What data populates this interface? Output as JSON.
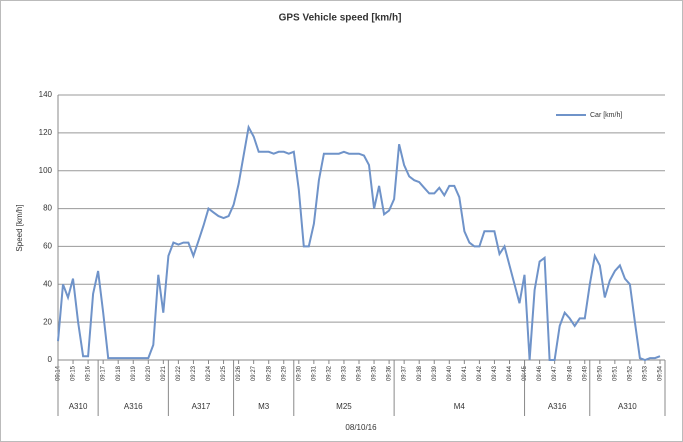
{
  "chart_data": {
    "type": "line",
    "title": "GPS Vehicle speed [km/h]",
    "y_label": "Speed [km/h]",
    "x_label": "08/10/16",
    "groups": [
      "A310",
      "A316",
      "A317",
      "M3",
      "M25",
      "M4",
      "A316",
      "A310"
    ],
    "categories": [
      "09:14",
      null,
      null,
      "09:15",
      null,
      null,
      "09:16",
      null,
      null,
      "09:17",
      null,
      null,
      "09:18",
      null,
      null,
      "09:19",
      null,
      null,
      "09:20",
      null,
      null,
      "09:21",
      null,
      null,
      "09:22",
      null,
      null,
      "09:23",
      null,
      null,
      "09:24",
      null,
      null,
      "09:25",
      null,
      null,
      "09:26",
      null,
      null,
      "09:27",
      null,
      null,
      "09:28",
      null,
      null,
      "09:29",
      null,
      null,
      "09:30",
      null,
      null,
      "09:31",
      null,
      null,
      "09:32",
      null,
      null,
      "09:33",
      null,
      null,
      "09:34",
      null,
      null,
      "09:35",
      null,
      null,
      "09:36",
      null,
      null,
      "09:37",
      null,
      null,
      "09:38",
      null,
      null,
      "09:39",
      null,
      null,
      "09:40",
      null,
      null,
      "09:41",
      null,
      null,
      "09:42",
      null,
      null,
      "09:43",
      null,
      null,
      "09:44",
      null,
      null,
      "09:45",
      null,
      null,
      "09:46",
      null,
      null,
      "09:47",
      null,
      null,
      "09:48",
      null,
      null,
      "09:49",
      null,
      null,
      "09:50",
      null,
      null,
      "09:51",
      null,
      null,
      "09:52",
      null,
      null,
      "09:53",
      null,
      null,
      "09:54"
    ],
    "series": [
      {
        "name": "Car [km/h]",
        "color": "#6f93c9",
        "values": [
          10,
          40,
          33,
          43,
          20,
          2,
          2,
          35,
          47,
          25,
          1,
          1,
          1,
          1,
          1,
          1,
          1,
          1,
          1,
          8,
          45,
          25,
          55,
          62,
          61,
          62,
          62,
          55,
          63,
          71,
          80,
          78,
          76,
          75,
          76,
          82,
          93,
          108,
          123,
          118,
          110,
          110,
          110,
          109,
          110,
          110,
          109,
          110,
          90,
          60,
          60,
          72,
          95,
          109,
          109,
          109,
          109,
          110,
          109,
          109,
          109,
          108,
          103,
          80,
          92,
          77,
          79,
          85,
          114,
          103,
          97,
          95,
          94,
          91,
          88,
          88,
          91,
          87,
          92,
          92,
          86,
          68,
          62,
          60,
          60,
          68,
          68,
          68,
          56,
          60,
          50,
          40,
          30,
          45,
          0,
          37,
          52,
          54,
          0,
          0,
          18,
          25,
          22,
          18,
          22,
          22,
          40,
          55,
          50,
          33,
          42,
          47,
          50,
          43,
          40,
          20,
          1,
          0,
          1,
          1,
          2
        ]
      }
    ],
    "ylim": [
      0,
      140
    ],
    "yticks": [
      0,
      20,
      40,
      60,
      80,
      100,
      120,
      140
    ],
    "grid": true,
    "legend": "top-right"
  }
}
